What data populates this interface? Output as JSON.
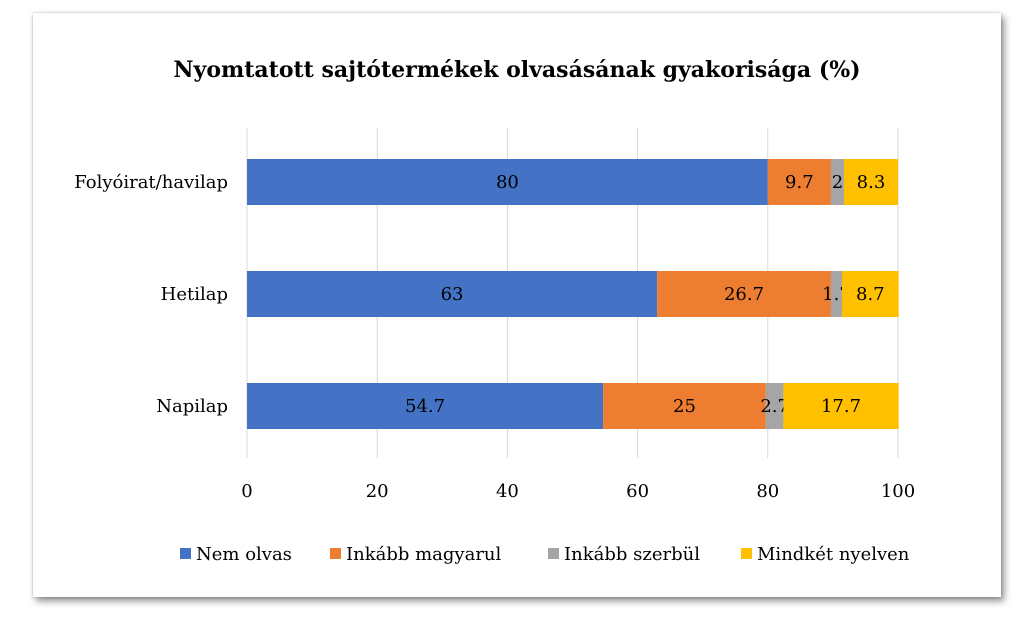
{
  "chart_data": {
    "type": "bar",
    "orientation": "horizontal",
    "stacked": true,
    "title": "Nyomtatott sajtótermékek olvasásának gyakorisága (%)",
    "categories": [
      "Folyóirat/havilap",
      "Hetilap",
      "Napilap"
    ],
    "series": [
      {
        "name": "Nem olvas",
        "color": "#4472C4",
        "values": [
          80,
          63,
          54.7
        ]
      },
      {
        "name": "Inkább magyarul",
        "color": "#ED7D31",
        "values": [
          9.7,
          26.7,
          25
        ]
      },
      {
        "name": "Inkább szerbül",
        "color": "#A5A5A5",
        "values": [
          2,
          1.7,
          2.7
        ]
      },
      {
        "name": "Mindkét nyelven",
        "color": "#FFC000",
        "values": [
          8.3,
          8.7,
          17.7
        ]
      }
    ],
    "xlim": [
      0,
      100
    ],
    "xticks": [
      0,
      20,
      40,
      60,
      80,
      100
    ],
    "grid": true,
    "legend": "bottom",
    "xlabel": "",
    "ylabel": ""
  }
}
